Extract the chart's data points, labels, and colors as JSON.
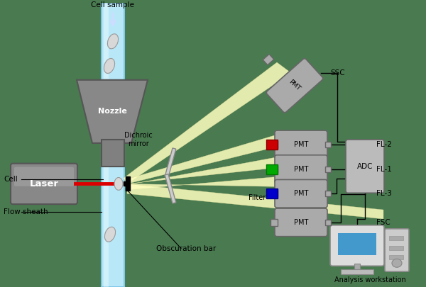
{
  "bg_color": "#4a7a50",
  "tube_color": "#b8e8f8",
  "tube_border": "#80c8e8",
  "nozzle_color": "#888888",
  "laser_color": "#999999",
  "beam_color": "#ffffc0",
  "laser_beam_color": "#dd0000",
  "pmt_color": "#aaaaaa",
  "adc_color": "#bbbbbb",
  "wire_color": "#000000",
  "cell_sample_label": "Cell sample",
  "nozzle_label": "Nozzle",
  "cell_label": "Cell",
  "flow_sheath_label": "Flow sheath",
  "dichroic_label": "Dichroic\nmirror",
  "filter_label": "Filter",
  "obscuration_label": "Obscuration bar",
  "ssc_label": "SSC",
  "fsc_label": "FSC",
  "fl_labels": [
    "FL-2",
    "FL-1",
    "FL-3"
  ],
  "adc_label": "ADC",
  "workstation_label": "Analysis workstation",
  "font_size": 7.5
}
